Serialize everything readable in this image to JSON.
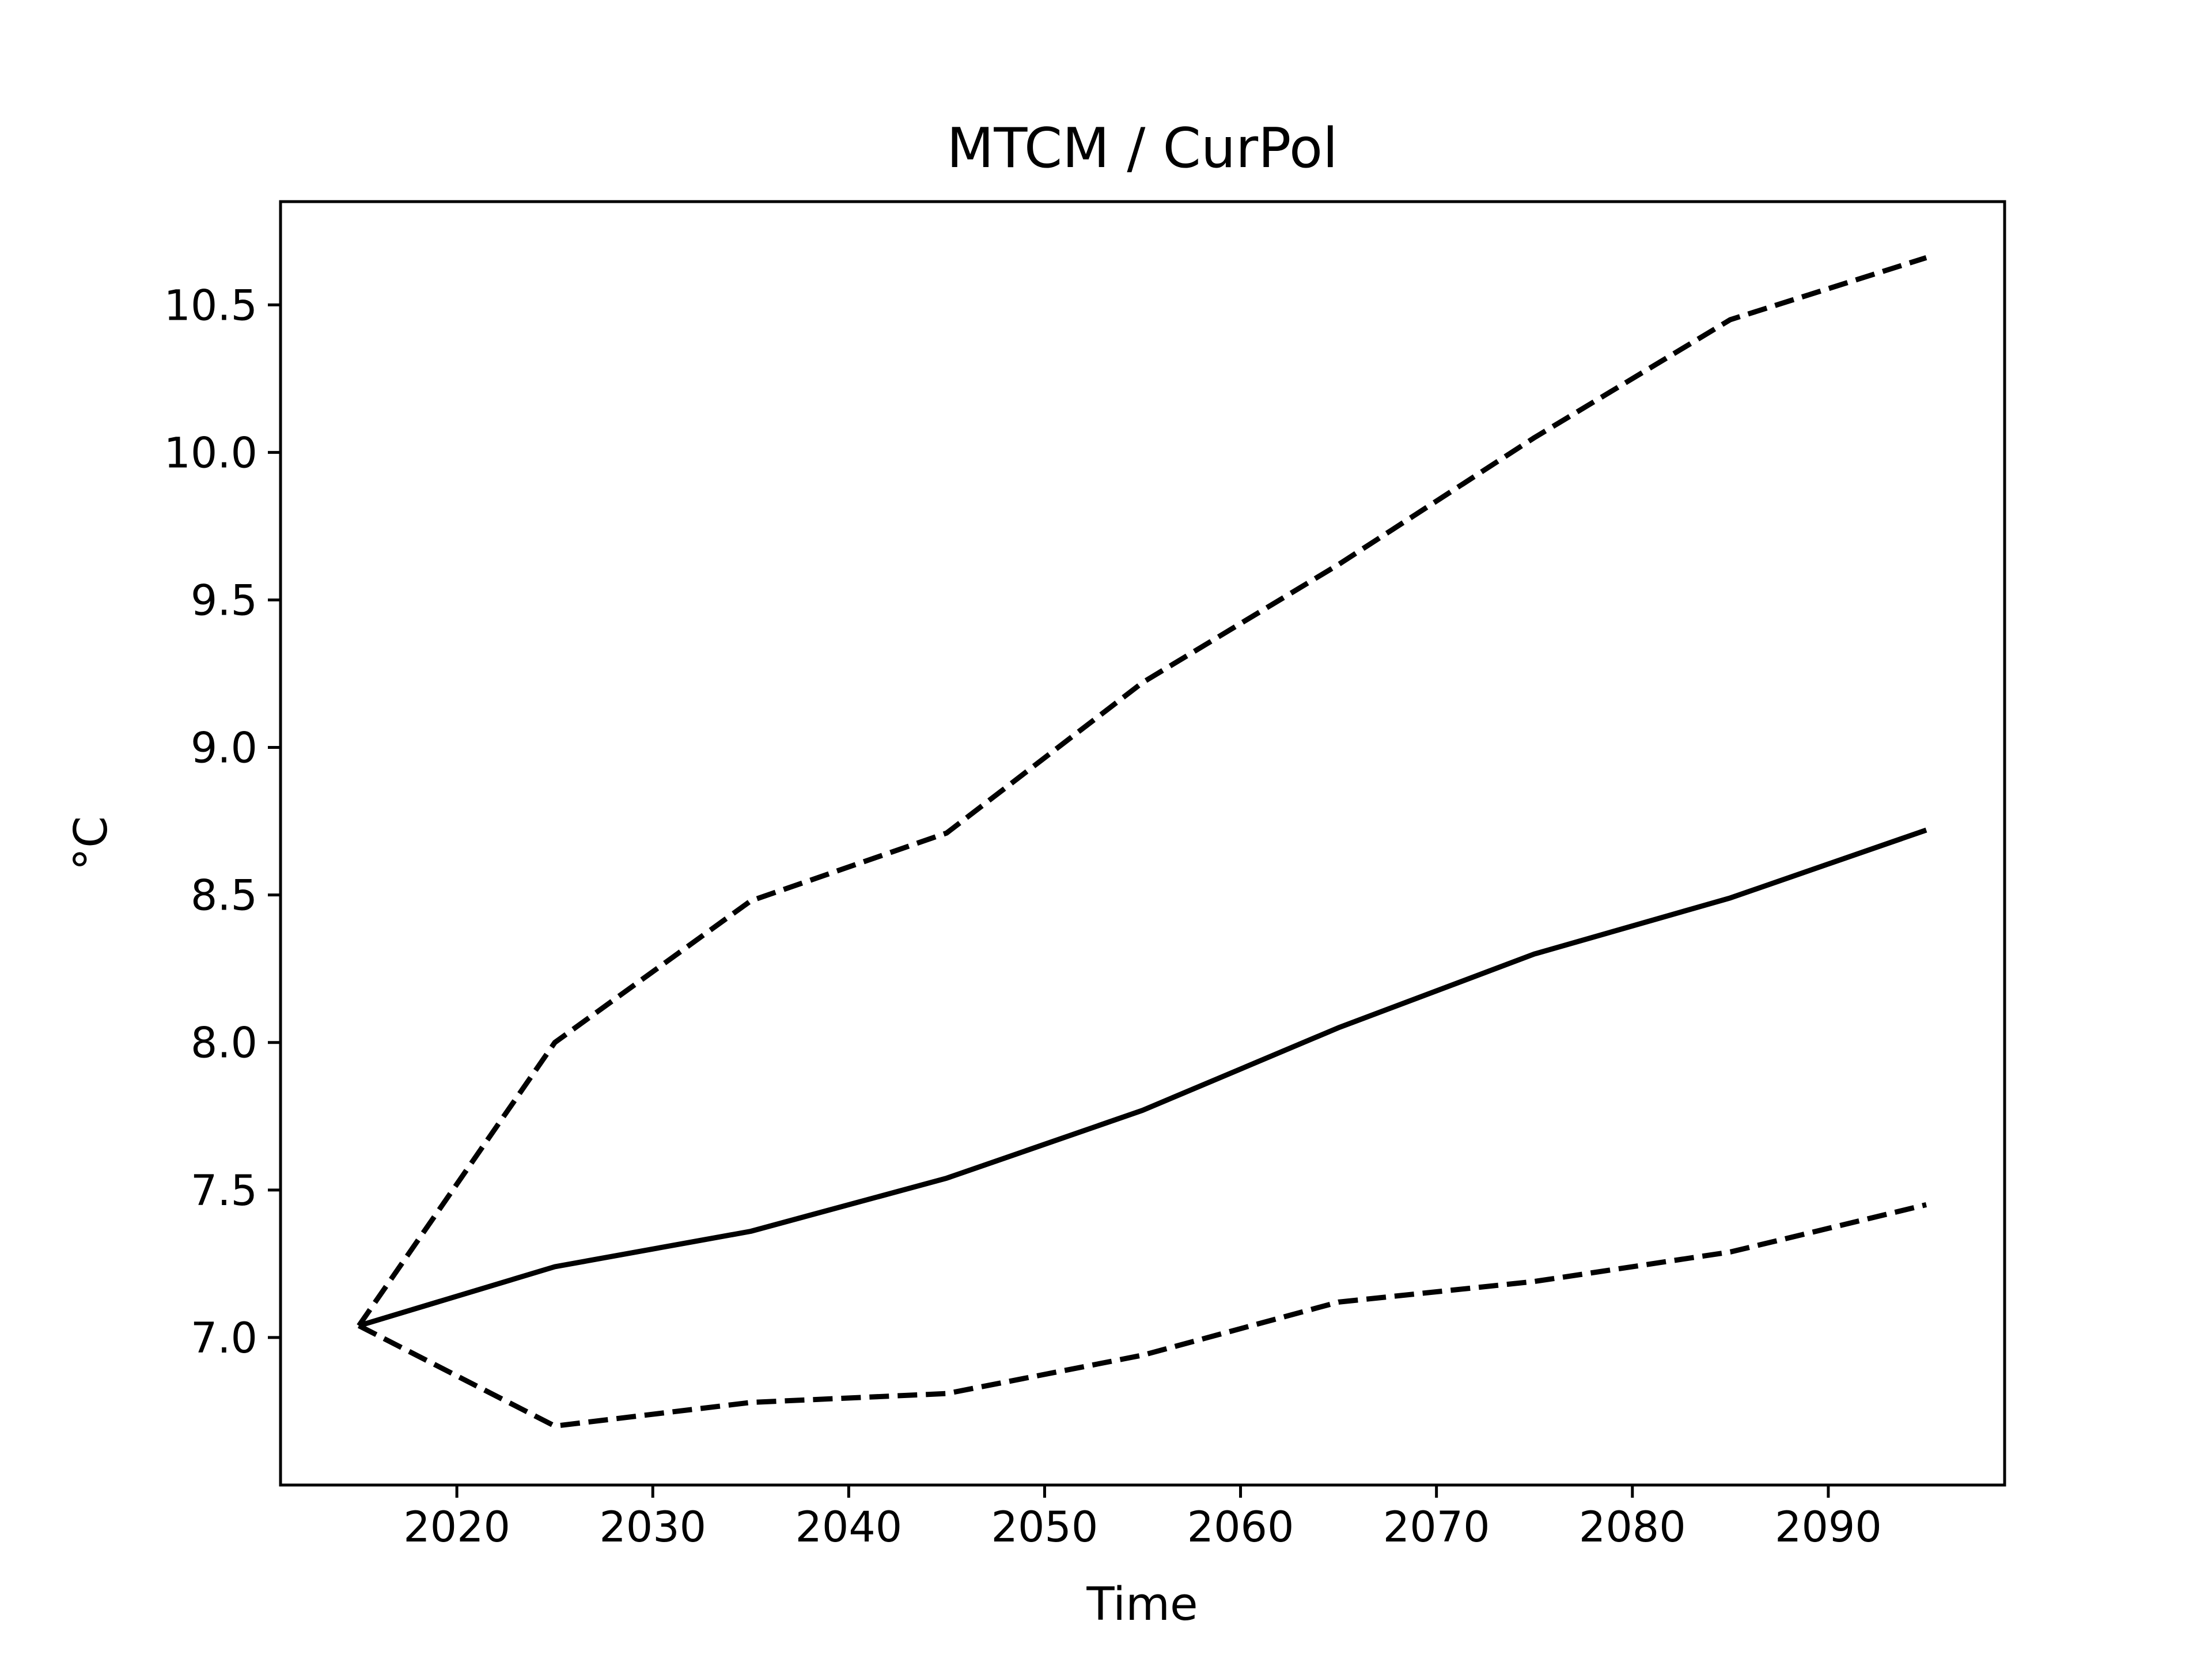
{
  "chart_data": {
    "type": "line",
    "title": "MTCM / CurPol",
    "xlabel": "Time",
    "ylabel": "°C",
    "xlim": [
      2011,
      2099
    ],
    "ylim": [
      6.5,
      10.85
    ],
    "xticks": [
      2020,
      2030,
      2040,
      2050,
      2060,
      2070,
      2080,
      2090
    ],
    "yticks": [
      7.0,
      7.5,
      8.0,
      8.5,
      9.0,
      9.5,
      10.0,
      10.5
    ],
    "ytick_labels": [
      "7.0",
      "7.5",
      "8.0",
      "8.5",
      "9.0",
      "9.5",
      "10.0",
      "10.5"
    ],
    "grid": false,
    "legend": false,
    "x": [
      2015,
      2025,
      2035,
      2045,
      2055,
      2065,
      2075,
      2085,
      2095
    ],
    "series": [
      {
        "style": "solid",
        "color": "#000000",
        "values": [
          7.04,
          7.24,
          7.36,
          7.54,
          7.77,
          8.05,
          8.3,
          8.49,
          8.72
        ]
      },
      {
        "style": "dashed",
        "color": "#000000",
        "values": [
          7.04,
          8.0,
          8.48,
          8.71,
          9.22,
          9.62,
          10.05,
          10.45,
          10.66
        ]
      },
      {
        "style": "dashed",
        "color": "#000000",
        "values": [
          7.04,
          6.7,
          6.78,
          6.81,
          6.94,
          7.12,
          7.19,
          7.29,
          7.45
        ]
      }
    ]
  }
}
